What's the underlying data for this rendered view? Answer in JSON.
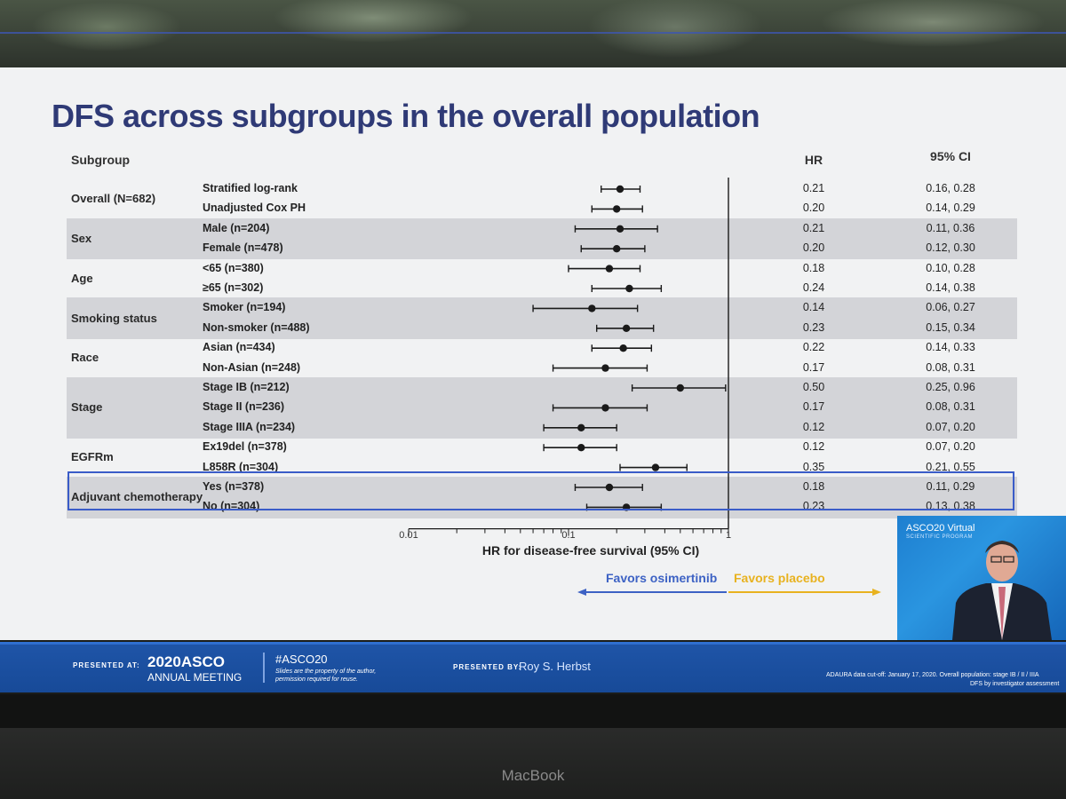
{
  "slide": {
    "title": "DFS across subgroups in the overall population",
    "headers": {
      "subgroup": "Subgroup",
      "hr": "HR",
      "ci": "95% CI"
    },
    "favors_left": "Favors osimertinib",
    "favors_right": "Favors placebo"
  },
  "colors": {
    "title": "#2f3a76",
    "band": "#d3d4d8",
    "highlight": "#3a5cc8",
    "favors_left": "#3d62c4",
    "favors_right": "#e8b21f",
    "footer": "#1f55a8"
  },
  "chart_data": {
    "type": "forest",
    "xlabel": "HR for disease-free survival (95% CI)",
    "x_scale": "log",
    "xlim": [
      0.01,
      1
    ],
    "x_ticks": [
      "0.01",
      "0.1",
      "1"
    ],
    "reference_line": 1,
    "groups": [
      {
        "name": "Overall (N=682)",
        "shaded": false,
        "highlight": false,
        "rows": [
          {
            "label": "Stratified log-rank",
            "hr": 0.21,
            "lo": 0.16,
            "hi": 0.28,
            "hr_text": "0.21",
            "ci_text": "0.16, 0.28"
          },
          {
            "label": "Unadjusted Cox PH",
            "hr": 0.2,
            "lo": 0.14,
            "hi": 0.29,
            "hr_text": "0.20",
            "ci_text": "0.14, 0.29"
          }
        ]
      },
      {
        "name": "Sex",
        "shaded": true,
        "highlight": false,
        "rows": [
          {
            "label": "Male (n=204)",
            "hr": 0.21,
            "lo": 0.11,
            "hi": 0.36,
            "hr_text": "0.21",
            "ci_text": "0.11, 0.36"
          },
          {
            "label": "Female (n=478)",
            "hr": 0.2,
            "lo": 0.12,
            "hi": 0.3,
            "hr_text": "0.20",
            "ci_text": "0.12, 0.30"
          }
        ]
      },
      {
        "name": "Age",
        "shaded": false,
        "highlight": false,
        "rows": [
          {
            "label": "<65 (n=380)",
            "hr": 0.18,
            "lo": 0.1,
            "hi": 0.28,
            "hr_text": "0.18",
            "ci_text": "0.10, 0.28"
          },
          {
            "label": "≥65 (n=302)",
            "hr": 0.24,
            "lo": 0.14,
            "hi": 0.38,
            "hr_text": "0.24",
            "ci_text": "0.14, 0.38"
          }
        ]
      },
      {
        "name": "Smoking status",
        "shaded": true,
        "highlight": false,
        "rows": [
          {
            "label": "Smoker (n=194)",
            "hr": 0.14,
            "lo": 0.06,
            "hi": 0.27,
            "hr_text": "0.14",
            "ci_text": "0.06, 0.27"
          },
          {
            "label": "Non-smoker (n=488)",
            "hr": 0.23,
            "lo": 0.15,
            "hi": 0.34,
            "hr_text": "0.23",
            "ci_text": "0.15, 0.34"
          }
        ]
      },
      {
        "name": "Race",
        "shaded": false,
        "highlight": false,
        "rows": [
          {
            "label": "Asian (n=434)",
            "hr": 0.22,
            "lo": 0.14,
            "hi": 0.33,
            "hr_text": "0.22",
            "ci_text": "0.14, 0.33"
          },
          {
            "label": "Non-Asian (n=248)",
            "hr": 0.17,
            "lo": 0.08,
            "hi": 0.31,
            "hr_text": "0.17",
            "ci_text": "0.08, 0.31"
          }
        ]
      },
      {
        "name": "Stage",
        "shaded": true,
        "highlight": false,
        "rows": [
          {
            "label": "Stage IB (n=212)",
            "hr": 0.5,
            "lo": 0.25,
            "hi": 0.96,
            "hr_text": "0.50",
            "ci_text": "0.25, 0.96"
          },
          {
            "label": "Stage II (n=236)",
            "hr": 0.17,
            "lo": 0.08,
            "hi": 0.31,
            "hr_text": "0.17",
            "ci_text": "0.08, 0.31"
          },
          {
            "label": "Stage IIIA (n=234)",
            "hr": 0.12,
            "lo": 0.07,
            "hi": 0.2,
            "hr_text": "0.12",
            "ci_text": "0.07, 0.20"
          }
        ]
      },
      {
        "name": "EGFRm",
        "shaded": false,
        "highlight": false,
        "rows": [
          {
            "label": "Ex19del (n=378)",
            "hr": 0.12,
            "lo": 0.07,
            "hi": 0.2,
            "hr_text": "0.12",
            "ci_text": "0.07, 0.20"
          },
          {
            "label": "L858R (n=304)",
            "hr": 0.35,
            "lo": 0.21,
            "hi": 0.55,
            "hr_text": "0.35",
            "ci_text": "0.21, 0.55"
          }
        ]
      },
      {
        "name": "Adjuvant chemotherapy",
        "shaded": true,
        "highlight": true,
        "rows": [
          {
            "label": "Yes (n=378)",
            "hr": 0.18,
            "lo": 0.11,
            "hi": 0.29,
            "hr_text": "0.18",
            "ci_text": "0.11, 0.29"
          },
          {
            "label": "No (n=304)",
            "hr": 0.23,
            "lo": 0.13,
            "hi": 0.38,
            "hr_text": "0.23",
            "ci_text": "0.13, 0.38"
          }
        ]
      }
    ]
  },
  "video": {
    "title": "ASCO20 Virtual",
    "subtitle": "SCIENTIFIC PROGRAM"
  },
  "footer": {
    "presented_at": "PRESENTED AT:",
    "year": "2020",
    "brand": "ASCO",
    "meeting": "ANNUAL MEETING",
    "hashtag": "#ASCO20",
    "disclaimer_1": "Slides are the property of the author,",
    "disclaimer_2": "permission required for reuse.",
    "presented_by": "PRESENTED BY:",
    "presenter": "Roy S. Herbst",
    "note_1": "ADAURA data cut-off: January 17, 2020. Overall population: stage IB / II / IIIA",
    "note_2": "DFS by investigator assessment"
  },
  "device": {
    "label": "MacBook"
  }
}
